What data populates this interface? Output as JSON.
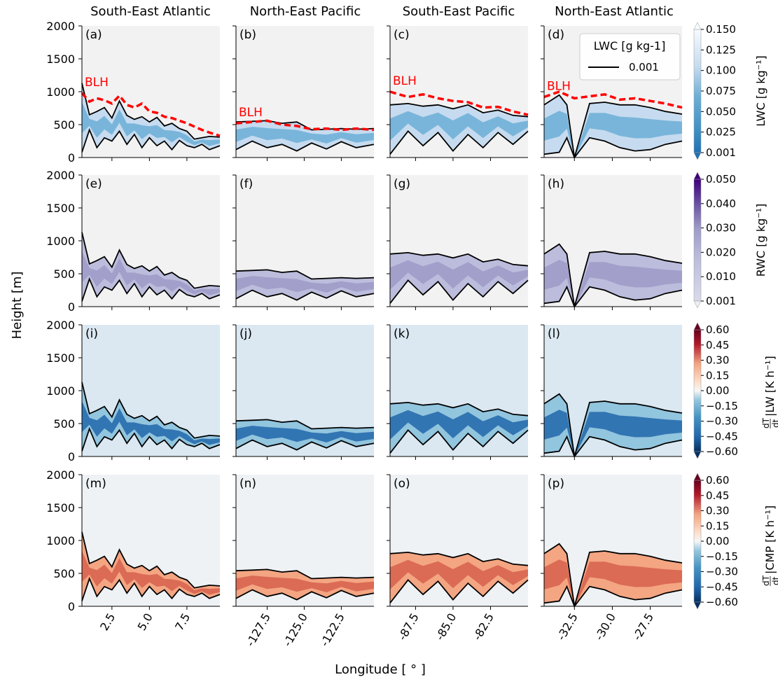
{
  "figure": {
    "ylabel": "Height [m]",
    "xlabel": "Longitude [$^\\circ$]",
    "xlabel_display": "Longitude [ ° ]"
  },
  "columns": [
    {
      "title": "South-East Atlantic",
      "xlim": [
        0.5,
        9.7
      ],
      "xticks": [
        2.5,
        5.0,
        7.5
      ],
      "xtick_labels": [
        "2.5",
        "5.0",
        "7.5"
      ]
    },
    {
      "title": "North-East Pacific",
      "xlim": [
        -129.6,
        -120.3
      ],
      "xticks": [
        -127.5,
        -125.0,
        -122.5
      ],
      "xtick_labels": [
        "-127.5",
        "-125.0",
        "-122.5"
      ]
    },
    {
      "title": "South-East Pacific",
      "xlim": [
        -89.2,
        -80.0
      ],
      "xticks": [
        -87.5,
        -85.0,
        -82.5
      ],
      "xtick_labels": [
        "-87.5",
        "-85.0",
        "-82.5"
      ]
    },
    {
      "title": "North-East Atlantic",
      "xlim": [
        -34.5,
        -25.4
      ],
      "xticks": [
        -32.5,
        -30.0,
        -27.5
      ],
      "xtick_labels": [
        "-32.5",
        "-30.0",
        "-27.5"
      ]
    }
  ],
  "rows": [
    {
      "variable": "LWC",
      "panel_labels": [
        "(a)",
        "(b)",
        "(c)",
        "(d)"
      ],
      "colorbar_label": "LWC [g kg$^{-1}$]",
      "colorbar_display": "LWC [g kg⁻¹]",
      "colormap": "Blues",
      "levels": [
        "0.001",
        "0.025",
        "0.050",
        "0.075",
        "0.100",
        "0.125",
        "0.150"
      ]
    },
    {
      "variable": "RWC",
      "panel_labels": [
        "(e)",
        "(f)",
        "(g)",
        "(h)"
      ],
      "colorbar_label": "RWC [g kg$^{-1}$]",
      "colorbar_display": "RWC [g kg⁻¹]",
      "colormap": "Purples",
      "levels": [
        "0.001",
        "0.010",
        "0.020",
        "0.030",
        "0.040",
        "0.050"
      ]
    },
    {
      "variable": "LW heating rate",
      "panel_labels": [
        "(i)",
        "(j)",
        "(k)",
        "(l)"
      ],
      "colorbar_label": "dT/dt|LW [K h$^{-1}$]",
      "colorbar_display": "|LW [K h⁻¹]",
      "colormap": "RdBu_r",
      "levels": [
        "−0.60",
        "−0.45",
        "−0.30",
        "−0.15",
        "0.00",
        "0.15",
        "0.30",
        "0.45",
        "0.60"
      ]
    },
    {
      "variable": "CMP heating rate",
      "panel_labels": [
        "(m)",
        "(n)",
        "(o)",
        "(p)"
      ],
      "colorbar_label": "dT/dt|CMP [K h$^{-1}$]",
      "colorbar_display": "|CMP [K h⁻¹]",
      "colormap": "RdBu_r",
      "levels": [
        "−0.60",
        "−0.45",
        "−0.30",
        "−0.15",
        "0.00",
        "0.15",
        "0.30",
        "0.45",
        "0.60"
      ]
    }
  ],
  "legend": {
    "title": "LWC [g kg-1]",
    "entry": "0.001",
    "placement": "upper right of panel (d)"
  },
  "chart_data": {
    "type": "contour",
    "ylim": [
      0,
      2000
    ],
    "yticks": [
      0,
      500,
      1000,
      1500,
      2000
    ],
    "blh_label": "BLH",
    "blh_color": "#ff0000",
    "contour_color": "#000000",
    "blh": [
      {
        "region": "South-East Atlantic",
        "x": [
          0.5,
          1.0,
          1.5,
          2.0,
          2.5,
          3.0,
          3.5,
          4.0,
          4.5,
          5.0,
          5.5,
          6.0,
          6.5,
          7.0,
          7.5,
          8.0,
          8.5,
          9.0,
          9.7
        ],
        "y": [
          980,
          850,
          900,
          870,
          820,
          940,
          800,
          760,
          820,
          700,
          680,
          620,
          600,
          560,
          520,
          470,
          420,
          380,
          330
        ]
      },
      {
        "region": "North-East Pacific",
        "x": [
          -129.6,
          -128.5,
          -127.5,
          -126.5,
          -125.5,
          -124.5,
          -123.5,
          -122.5,
          -121.5,
          -120.3
        ],
        "y": [
          520,
          540,
          560,
          500,
          480,
          430,
          440,
          420,
          440,
          420
        ]
      },
      {
        "region": "South-East Pacific",
        "x": [
          -89.2,
          -88.0,
          -87.0,
          -86.0,
          -85.0,
          -84.0,
          -83.0,
          -82.0,
          -81.0,
          -80.0
        ],
        "y": [
          1000,
          920,
          960,
          900,
          860,
          840,
          760,
          770,
          700,
          650
        ]
      },
      {
        "region": "North-East Atlantic",
        "x": [
          -34.5,
          -33.5,
          -32.5,
          -31.5,
          -30.5,
          -29.5,
          -28.5,
          -27.5,
          -26.5,
          -25.4
        ],
        "y": [
          920,
          1000,
          900,
          930,
          960,
          880,
          900,
          860,
          820,
          760
        ]
      }
    ],
    "cloud_top": [
      {
        "region": "South-East Atlantic",
        "x": [
          0.5,
          1.0,
          1.5,
          2.0,
          2.5,
          3.0,
          3.5,
          4.0,
          4.5,
          5.0,
          5.5,
          6.0,
          6.5,
          7.0,
          7.5,
          8.0,
          8.5,
          9.0,
          9.7
        ],
        "y": [
          1130,
          650,
          700,
          760,
          600,
          860,
          640,
          580,
          620,
          540,
          610,
          480,
          520,
          440,
          400,
          280,
          300,
          320,
          310
        ]
      },
      {
        "region": "North-East Pacific",
        "x": [
          -129.6,
          -128.5,
          -127.5,
          -126.5,
          -125.5,
          -124.5,
          -123.5,
          -122.5,
          -121.5,
          -120.3
        ],
        "y": [
          540,
          550,
          560,
          520,
          540,
          420,
          430,
          440,
          430,
          440
        ]
      },
      {
        "region": "South-East Pacific",
        "x": [
          -89.2,
          -88.0,
          -87.0,
          -86.0,
          -85.0,
          -84.0,
          -83.0,
          -82.0,
          -81.0,
          -80.0
        ],
        "y": [
          800,
          820,
          780,
          800,
          740,
          800,
          680,
          720,
          640,
          620
        ]
      },
      {
        "region": "North-East Atlantic",
        "x": [
          -34.5,
          -33.5,
          -33.0,
          -32.5,
          -31.5,
          -30.5,
          -29.5,
          -28.5,
          -27.5,
          -26.5,
          -25.4
        ],
        "y": [
          800,
          950,
          800,
          0,
          820,
          840,
          800,
          800,
          760,
          700,
          660
        ]
      }
    ],
    "cloud_base": [
      {
        "region": "South-East Atlantic",
        "x": [
          0.5,
          1.0,
          1.5,
          2.0,
          2.5,
          3.0,
          3.5,
          4.0,
          4.5,
          5.0,
          5.5,
          6.0,
          6.5,
          7.0,
          7.5,
          8.0,
          8.5,
          9.0,
          9.7
        ],
        "y": [
          80,
          420,
          150,
          300,
          250,
          400,
          200,
          350,
          150,
          300,
          180,
          250,
          120,
          260,
          180,
          150,
          200,
          120,
          180
        ]
      },
      {
        "region": "North-East Pacific",
        "x": [
          -129.6,
          -128.5,
          -127.5,
          -126.5,
          -125.5,
          -124.5,
          -123.5,
          -122.5,
          -121.5,
          -120.3
        ],
        "y": [
          120,
          250,
          150,
          200,
          100,
          220,
          130,
          240,
          150,
          200
        ]
      },
      {
        "region": "South-East Pacific",
        "x": [
          -89.2,
          -88.0,
          -87.0,
          -86.0,
          -85.0,
          -84.0,
          -83.0,
          -82.0,
          -81.0,
          -80.0
        ],
        "y": [
          50,
          400,
          180,
          380,
          100,
          350,
          150,
          380,
          200,
          400
        ]
      },
      {
        "region": "North-East Atlantic",
        "x": [
          -34.5,
          -33.5,
          -33.0,
          -32.5,
          -31.5,
          -30.5,
          -29.5,
          -28.5,
          -27.5,
          -26.5,
          -25.4
        ],
        "y": [
          50,
          80,
          300,
          0,
          300,
          250,
          150,
          100,
          120,
          200,
          250
        ]
      }
    ],
    "colors": {
      "Blues": [
        "#c6dbef",
        "#9ecae1",
        "#6baed6",
        "#4292c6",
        "#2171b5",
        "#08519c"
      ],
      "Purples": [
        "#dadaeb",
        "#bcbddc",
        "#9e9ac8",
        "#807dba",
        "#6a51a3",
        "#3f007d"
      ],
      "RdBu_r": [
        "#053061",
        "#2166ac",
        "#4393c3",
        "#92c5de",
        "#d1e5f0",
        "#fddbc7",
        "#f4a582",
        "#d6604d",
        "#b2182b",
        "#67001f"
      ]
    }
  }
}
